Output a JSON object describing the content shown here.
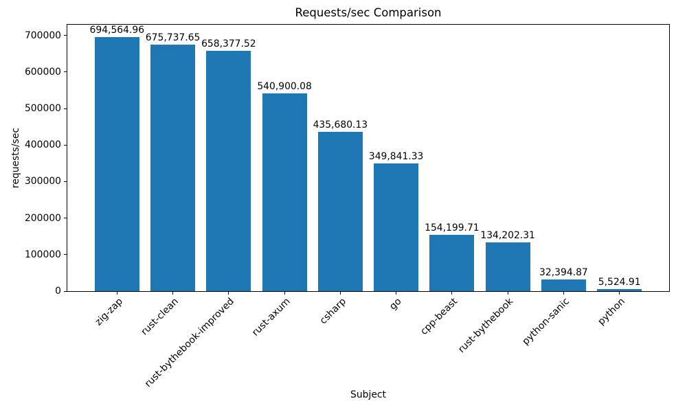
{
  "chart_data": {
    "type": "bar",
    "title": "Requests/sec Comparison",
    "xlabel": "Subject",
    "ylabel": "requests/sec",
    "categories": [
      "zig-zap",
      "rust-clean",
      "rust-bythebook-improved",
      "rust-axum",
      "csharp",
      "go",
      "cpp-beast",
      "rust-bythebook",
      "python-sanic",
      "python"
    ],
    "values": [
      694564.96,
      675737.65,
      658377.52,
      540900.08,
      435680.13,
      349841.33,
      154199.71,
      134202.31,
      32394.87,
      5524.91
    ],
    "bar_value_labels": [
      "694,564.96",
      "675,737.65",
      "658,377.52",
      "540,900.08",
      "435,680.13",
      "349,841.33",
      "154,199.71",
      "134,202.31",
      "32,394.87",
      "5,524.91"
    ],
    "yticks": [
      0,
      100000,
      200000,
      300000,
      400000,
      500000,
      600000,
      700000
    ],
    "ytick_labels": [
      "0",
      "100000",
      "200000",
      "300000",
      "400000",
      "500000",
      "600000",
      "700000"
    ],
    "ylim": [
      0,
      729293
    ],
    "xlim": [
      -0.89,
      9.89
    ],
    "bar_width": 0.8,
    "bar_color": "#1f77b4",
    "grid": false,
    "legend": "none"
  }
}
